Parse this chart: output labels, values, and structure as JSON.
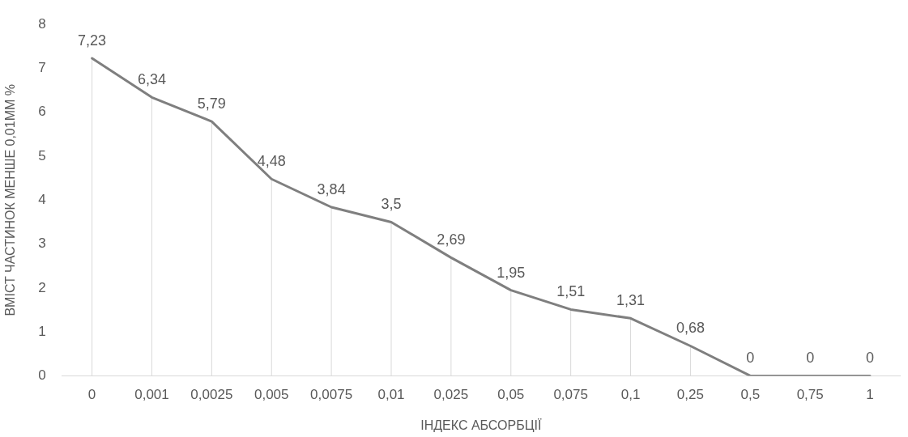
{
  "chart_data": {
    "type": "line",
    "xlabel": "ІНДЕКС АБСОРБЦІЇ",
    "ylabel": "ВМІСТ ЧАСТИНОК МЕНШЕ 0,01ММ %",
    "categories": [
      "0",
      "0,001",
      "0,0025",
      "0,005",
      "0,0075",
      "0,01",
      "0,025",
      "0,05",
      "0,075",
      "0,1",
      "0,25",
      "0,5",
      "0,75",
      "1"
    ],
    "values": [
      7.23,
      6.34,
      5.79,
      4.48,
      3.84,
      3.5,
      2.69,
      1.95,
      1.51,
      1.31,
      0.68,
      0,
      0,
      0
    ],
    "value_labels": [
      "7,23",
      "6,34",
      "5,79",
      "4,48",
      "3,84",
      "3,5",
      "2,69",
      "1,95",
      "1,51",
      "1,31",
      "0,68",
      "0",
      "0",
      "0"
    ],
    "color": "#7f7f7f",
    "ylim": [
      0,
      8
    ],
    "yticks": [
      0,
      1,
      2,
      3,
      4,
      5,
      6,
      7,
      8
    ],
    "grid": "x",
    "legend": false,
    "marker": "none",
    "line_style": "solid"
  }
}
